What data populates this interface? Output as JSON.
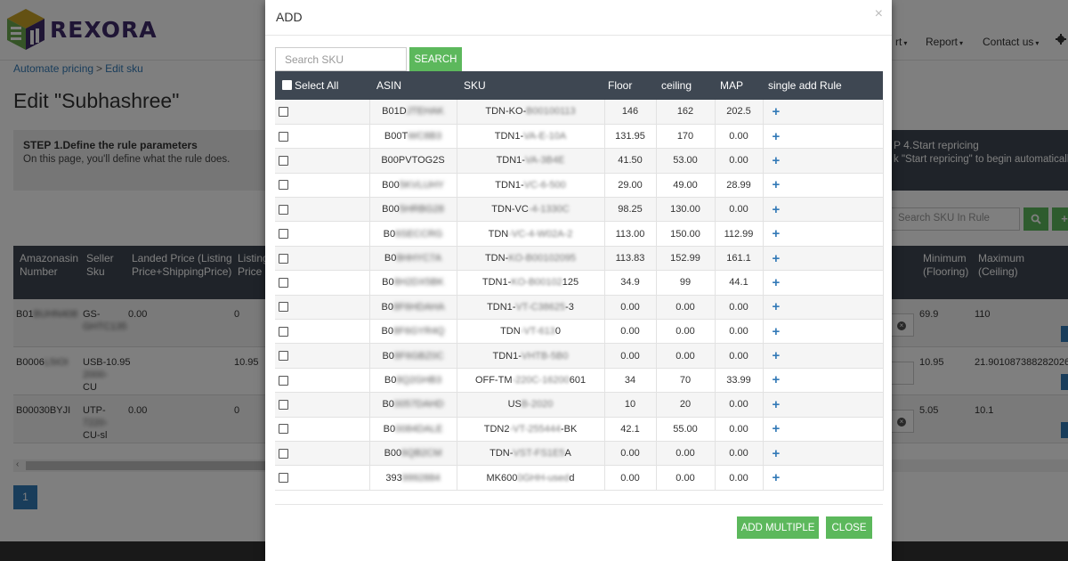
{
  "brand": {
    "name": "REXORA"
  },
  "nav": {
    "items": [
      {
        "label": "rt"
      },
      {
        "label": "Report"
      },
      {
        "label": "Contact us"
      }
    ]
  },
  "breadcrumb": {
    "first": "Automate pricing",
    "separator": ">",
    "second": "Edit sku"
  },
  "page": {
    "title": "Edit \"Subhashree\""
  },
  "steps": {
    "step1": {
      "title": "STEP 1.Define the rule parameters",
      "desc": "On this page, you'll define what the rule does."
    },
    "step4": {
      "title": "P 4.Start repricing",
      "desc": "k \"Start repricing\" to begin automatically"
    }
  },
  "rule_search": {
    "placeholder": "Search SKU In Rule"
  },
  "bg_table": {
    "headers": [
      "Amazonasin Number",
      "Seller Sku",
      "Landed Price (Listing Price+ShippingPrice)",
      "Listing Price",
      "Minimum (Flooring)",
      "Maximum (Ceiling)"
    ],
    "rows": [
      {
        "asin": "B01",
        "asin_blur": "BUHN408",
        "sku": "GS-",
        "sku_blur": "GHTC135",
        "landed": "0.00",
        "listing": "0",
        "min": "69.9",
        "max": "110"
      },
      {
        "asin": "B0006",
        "asin_blur": "L5IOI",
        "sku": "USB-",
        "sku_blur": "2000-",
        "sku_tail": "CU",
        "landed": "10.95",
        "listing": "10.95",
        "min": "10.95",
        "max": "21.901087388282026"
      },
      {
        "asin": "B00030BYJI",
        "asin_blur": "",
        "sku": "UTP-",
        "sku_blur": "7220-",
        "sku_tail": "CU-sl",
        "landed": "0.00",
        "listing": "0",
        "min": "5.05",
        "max": "10.1"
      }
    ]
  },
  "pager": {
    "current": "1"
  },
  "modal": {
    "title": "ADD",
    "close_glyph": "×",
    "search_placeholder": "Search SKU",
    "search_button": "SEARCH",
    "headers": {
      "select_all": "Select All",
      "asin": "ASIN",
      "sku": "SKU",
      "floor": "Floor",
      "ceiling": "ceiling",
      "map": "MAP",
      "rule": "single add Rule"
    },
    "rows": [
      {
        "asin": "B01D",
        "asin_blur": "JTEHAK",
        "sku": "TDN-KO-",
        "sku_blur": "B00100113",
        "sku_tail": "",
        "floor": "146",
        "ceiling": "162",
        "map": "202.5"
      },
      {
        "asin": "B00T",
        "asin_blur": "WC8B3",
        "sku": "TDN1-",
        "sku_blur": "VA-E-10A",
        "sku_tail": "",
        "floor": "131.95",
        "ceiling": "170",
        "map": "0.00"
      },
      {
        "asin": "B00PVTOG2S",
        "asin_blur": "",
        "sku": "TDN1-",
        "sku_blur": "VA-3B4E",
        "sku_tail": "",
        "floor": "41.50",
        "ceiling": "53.00",
        "map": "0.00"
      },
      {
        "asin": "B00",
        "asin_blur": "5KVLUHY",
        "sku": "TDN1-",
        "sku_blur": "VC-6-500",
        "sku_tail": "",
        "floor": "29.00",
        "ceiling": "49.00",
        "map": "28.99"
      },
      {
        "asin": "B00",
        "asin_blur": "5HRBG28",
        "sku": "TDN-VC",
        "sku_blur": "-4-1330C",
        "sku_tail": "",
        "floor": "98.25",
        "ceiling": "130.00",
        "map": "0.00"
      },
      {
        "asin": "B0",
        "asin_blur": "6SECCRG",
        "sku": "TDN",
        "sku_blur": "-VC-4-W02A-2",
        "sku_tail": "",
        "floor": "113.00",
        "ceiling": "150.00",
        "map": "112.99"
      },
      {
        "asin": "B0",
        "asin_blur": "8HHYC7A",
        "sku": "TDN-",
        "sku_blur": "KO-B00102095",
        "sku_tail": "",
        "floor": "113.83",
        "ceiling": "152.99",
        "map": "161.1"
      },
      {
        "asin": "B0",
        "asin_blur": "8H2DX5BK",
        "sku": "TDN1-",
        "sku_blur": "KO-B00102",
        "sku_tail": "125",
        "floor": "34.9",
        "ceiling": "99",
        "map": "44.1"
      },
      {
        "asin": "B0",
        "asin_blur": "8F6HDAHA",
        "sku": "TDN1-",
        "sku_blur": "VT-C38625",
        "sku_tail": "-3",
        "floor": "0.00",
        "ceiling": "0.00",
        "map": "0.00"
      },
      {
        "asin": "B0",
        "asin_blur": "8F6GYR4Q",
        "sku": "TDN",
        "sku_blur": "-VT-613",
        "sku_tail": "0",
        "floor": "0.00",
        "ceiling": "0.00",
        "map": "0.00"
      },
      {
        "asin": "B0",
        "asin_blur": "8F6GBZ0C",
        "sku": "TDN1-",
        "sku_blur": "VHTB-5B0",
        "sku_tail": "",
        "floor": "0.00",
        "ceiling": "0.00",
        "map": "0.00"
      },
      {
        "asin": "B0",
        "asin_blur": "8Q2GHB3",
        "sku": "OFF-TM",
        "sku_blur": "-220C-16200",
        "sku_tail": "601",
        "floor": "34",
        "ceiling": "70",
        "map": "33.99"
      },
      {
        "asin": "B0",
        "asin_blur": "0057DAHD",
        "sku": "US",
        "sku_blur": "B-2020",
        "sku_tail": "",
        "floor": "10",
        "ceiling": "20",
        "map": "0.00"
      },
      {
        "asin": "B0",
        "asin_blur": "0084DALE",
        "sku": "TDN2",
        "sku_blur": "-VT-255444",
        "sku_tail": "-BK",
        "floor": "42.1",
        "ceiling": "55.00",
        "map": "0.00"
      },
      {
        "asin": "B00",
        "asin_blur": "6QB2CM",
        "sku": "TDN-",
        "sku_blur": "VST-FS1E5",
        "sku_tail": "A",
        "floor": "0.00",
        "ceiling": "0.00",
        "map": "0.00"
      },
      {
        "asin": "393",
        "asin_blur": "9992884",
        "sku": "MK600",
        "sku_blur": "0GHH-used",
        "sku_tail": "d",
        "floor": "0.00",
        "ceiling": "0.00",
        "map": "0.00"
      }
    ],
    "add_multiple": "ADD MULTIPLE",
    "close": "CLOSE"
  },
  "colors": {
    "accent_green": "#5cb85c",
    "header_dark": "#3e4752",
    "link_blue": "#337ab7",
    "brand_purple": "#3f2a6b"
  },
  "icons": {
    "plus": "+",
    "caret": "▾"
  }
}
